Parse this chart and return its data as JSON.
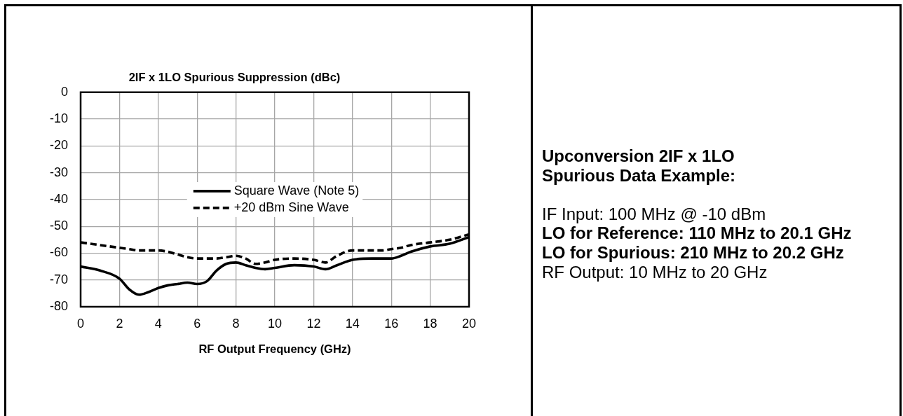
{
  "chart_data": [
    {
      "type": "line",
      "title": "2IF x 1LO Spurious Suppression (dBc)",
      "xlabel": "RF Output Frequency (GHz)",
      "xlim": [
        0,
        20
      ],
      "xticks": [
        0,
        2,
        4,
        6,
        8,
        10,
        12,
        14,
        16,
        18,
        20
      ],
      "ylim": [
        -80,
        0
      ],
      "yticks": [
        -80,
        -70,
        -60,
        -50,
        -40,
        -30,
        -20,
        -10,
        0
      ],
      "grid": true,
      "legend": "center",
      "marker": "none",
      "x": [
        0,
        1,
        2,
        2.5,
        3,
        3.5,
        4,
        4.5,
        5,
        5.5,
        6,
        6.5,
        7,
        7.5,
        8,
        8.5,
        9,
        9.5,
        10,
        11,
        12,
        12.6,
        13.2,
        14,
        15,
        15.5,
        16,
        16.5,
        17,
        18,
        19,
        20
      ],
      "series": [
        {
          "name": "Square Wave (Note 5)",
          "color": "#000000",
          "line_style": "solid",
          "values": [
            -65,
            -66.5,
            -69.5,
            -73.5,
            -75.5,
            -74.5,
            -73,
            -72,
            -71.5,
            -71,
            -71.5,
            -70.5,
            -66.5,
            -64,
            -63.5,
            -64.5,
            -65.5,
            -66,
            -65.5,
            -64.5,
            -65,
            -66,
            -64.5,
            -62.5,
            -62,
            -62,
            -62,
            -61,
            -59.5,
            -57.5,
            -56.5,
            -54
          ]
        },
        {
          "name": "+20 dBm Sine Wave",
          "color": "#000000",
          "line_style": "dashed",
          "values": [
            -56,
            -57,
            -58,
            -58.5,
            -59,
            -59,
            -59,
            -59.5,
            -60.5,
            -61.5,
            -62,
            -62,
            -62,
            -61.5,
            -61,
            -62,
            -64,
            -63.5,
            -62.5,
            -62,
            -62.5,
            -63.5,
            -61,
            -59,
            -59,
            -59,
            -58.5,
            -58,
            -57,
            -56,
            -55,
            -53
          ]
        }
      ]
    },
    {
      "type": "other",
      "title": "Upconversion 2IF x 1LO Spurious Data Example:",
      "annotations": [
        "IF Input: 100 MHz @ -10 dBm",
        "LO for Reference: 110 MHz to 20.1 GHz",
        "LO for Spurious: 210 MHz to 20.2 GHz",
        "RF Output: 10 MHz to 20 GHz"
      ]
    }
  ]
}
